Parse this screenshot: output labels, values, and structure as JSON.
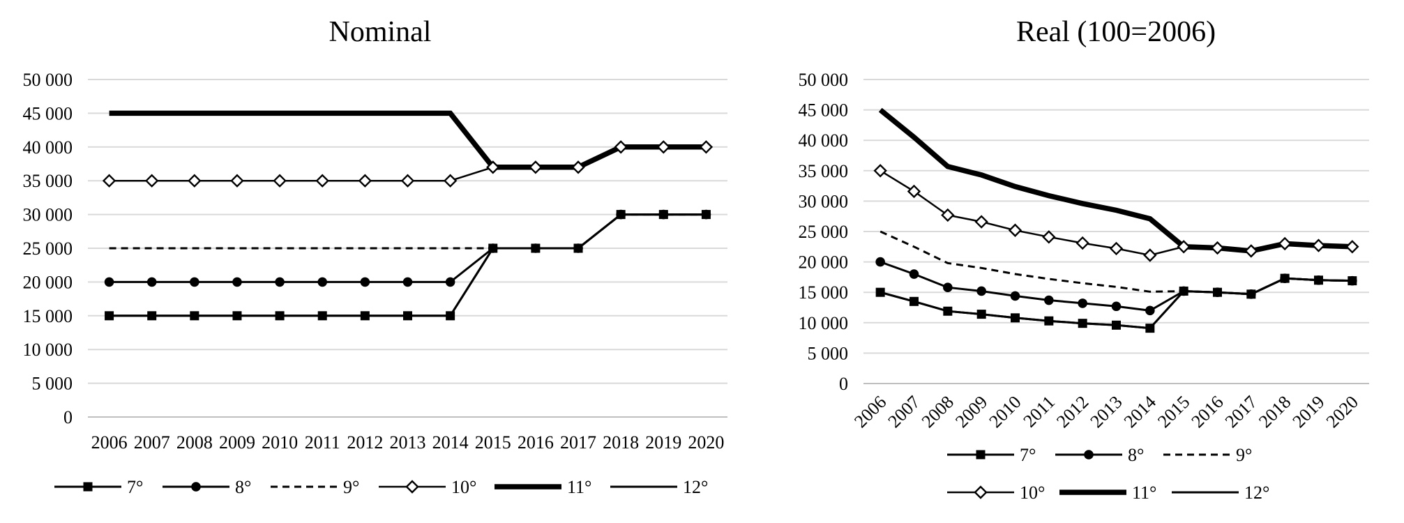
{
  "chart_data": [
    {
      "type": "line",
      "title": "Nominal",
      "xlabel": "",
      "ylabel": "",
      "x": [
        "2006",
        "2007",
        "2008",
        "2009",
        "2010",
        "2011",
        "2012",
        "2013",
        "2014",
        "2015",
        "2016",
        "2017",
        "2018",
        "2019",
        "2020"
      ],
      "yticks": [
        "0",
        "5 000",
        "10 000",
        "15 000",
        "20 000",
        "25 000",
        "30 000",
        "35 000",
        "40 000",
        "45 000",
        "50 000"
      ],
      "ylim": [
        0,
        50000
      ],
      "grid": true,
      "legend_placement": "bottom",
      "series": [
        {
          "name": "7°",
          "values": [
            15000,
            15000,
            15000,
            15000,
            15000,
            15000,
            15000,
            15000,
            15000,
            25000,
            25000,
            25000,
            30000,
            30000,
            30000
          ]
        },
        {
          "name": "8°",
          "values": [
            20000,
            20000,
            20000,
            20000,
            20000,
            20000,
            20000,
            20000,
            20000,
            25000,
            25000,
            25000,
            30000,
            30000,
            30000
          ]
        },
        {
          "name": "9°",
          "values": [
            25000,
            25000,
            25000,
            25000,
            25000,
            25000,
            25000,
            25000,
            25000,
            25000,
            25000,
            25000,
            30000,
            30000,
            30000
          ]
        },
        {
          "name": "10°",
          "values": [
            35000,
            35000,
            35000,
            35000,
            35000,
            35000,
            35000,
            35000,
            35000,
            37000,
            37000,
            37000,
            40000,
            40000,
            40000
          ]
        },
        {
          "name": "11°",
          "values": [
            45000,
            45000,
            45000,
            45000,
            45000,
            45000,
            45000,
            45000,
            45000,
            37000,
            37000,
            37000,
            40000,
            40000,
            40000
          ]
        },
        {
          "name": "12°",
          "values": [
            15000,
            15000,
            15000,
            15000,
            15000,
            15000,
            15000,
            15000,
            15000,
            25000,
            25000,
            25000,
            30000,
            30000,
            30000
          ]
        }
      ]
    },
    {
      "type": "line",
      "title": "Real (100=2006)",
      "xlabel": "",
      "ylabel": "",
      "x": [
        "2006",
        "2007",
        "2008",
        "2009",
        "2010",
        "2011",
        "2012",
        "2013",
        "2014",
        "2015",
        "2016",
        "2017",
        "2018",
        "2019",
        "2020"
      ],
      "yticks": [
        "0",
        "5 000",
        "10 000",
        "15 000",
        "20 000",
        "25 000",
        "30 000",
        "35 000",
        "40 000",
        "45 000",
        "50 000"
      ],
      "ylim": [
        0,
        50000
      ],
      "grid": true,
      "legend_placement": "bottom",
      "series": [
        {
          "name": "7°",
          "values": [
            15000,
            13500,
            11900,
            11400,
            10800,
            10300,
            9900,
            9600,
            9100,
            15200,
            15000,
            14700,
            17300,
            17000,
            16900
          ]
        },
        {
          "name": "8°",
          "values": [
            20000,
            18000,
            15800,
            15200,
            14400,
            13700,
            13200,
            12700,
            12000,
            15200,
            15000,
            14700,
            17300,
            17000,
            16900
          ]
        },
        {
          "name": "9°",
          "values": [
            25000,
            22500,
            19800,
            19000,
            18000,
            17200,
            16500,
            15900,
            15100,
            15200,
            15000,
            14700,
            17300,
            17000,
            16900
          ]
        },
        {
          "name": "10°",
          "values": [
            35000,
            31600,
            27700,
            26600,
            25200,
            24100,
            23100,
            22200,
            21100,
            22500,
            22300,
            21800,
            23000,
            22700,
            22500
          ]
        },
        {
          "name": "11°",
          "values": [
            45000,
            40500,
            35700,
            34300,
            32400,
            30900,
            29600,
            28500,
            27100,
            22500,
            22300,
            21800,
            23000,
            22700,
            22500
          ]
        },
        {
          "name": "12°",
          "values": [
            15000,
            13500,
            11900,
            11400,
            10800,
            10300,
            9900,
            9600,
            9100,
            15200,
            15000,
            14700,
            17300,
            17000,
            16900
          ]
        }
      ]
    }
  ]
}
